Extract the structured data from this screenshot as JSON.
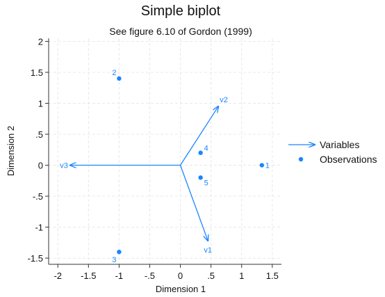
{
  "chart_data": {
    "type": "scatter",
    "title": "Simple biplot",
    "subtitle": "See figure 6.10 of Gordon (1999)",
    "xlabel": "Dimension 1",
    "ylabel": "Dimension 2",
    "xlim": [
      -2.15,
      1.65
    ],
    "ylim": [
      -1.6,
      2.05
    ],
    "xticks": [
      -2,
      -1.5,
      -1,
      -0.5,
      0,
      0.5,
      1,
      1.5
    ],
    "xtick_labels": [
      "-2",
      "-1.5",
      "-1",
      "-.5",
      "0",
      ".5",
      "1",
      "1.5"
    ],
    "yticks": [
      -1.5,
      -1,
      -0.5,
      0,
      0.5,
      1,
      1.5,
      2
    ],
    "ytick_labels": [
      "-1.5",
      "-1",
      "-.5",
      "0",
      ".5",
      "1",
      "1.5",
      "2"
    ],
    "grid": true,
    "color": "#1a85ff",
    "legend": {
      "placement": "right",
      "entries": [
        {
          "label": "Variables",
          "symbol": "arrow"
        },
        {
          "label": "Observations",
          "symbol": "dot"
        }
      ]
    },
    "variables": [
      {
        "name": "v2",
        "x": 0.62,
        "y": 0.95
      },
      {
        "name": "v1",
        "x": 0.45,
        "y": -1.22
      },
      {
        "name": "v3",
        "x": -1.8,
        "y": 0.0
      }
    ],
    "observations": [
      {
        "label": "2",
        "x": -1.0,
        "y": 1.4
      },
      {
        "label": "4",
        "x": 0.33,
        "y": 0.2
      },
      {
        "label": "1",
        "x": 1.33,
        "y": 0.0
      },
      {
        "label": "5",
        "x": 0.33,
        "y": -0.2
      },
      {
        "label": "3",
        "x": -1.0,
        "y": -1.4
      }
    ]
  }
}
